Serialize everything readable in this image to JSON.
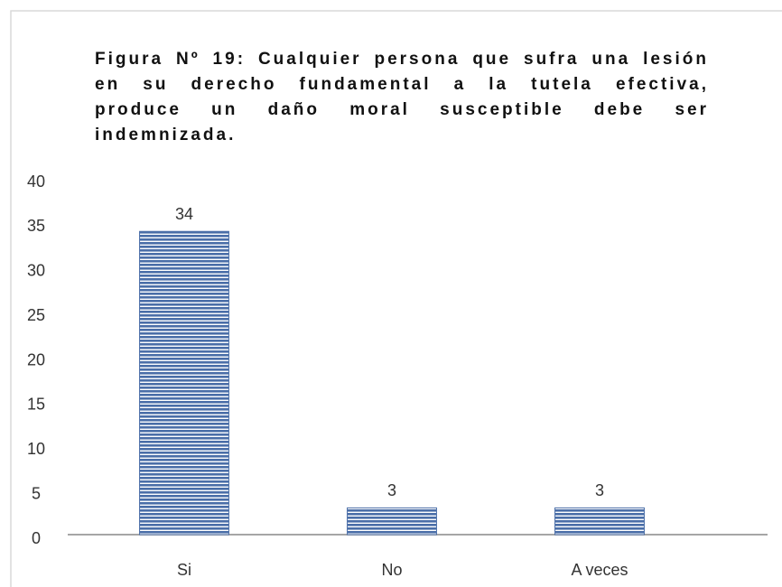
{
  "chart_data": {
    "type": "bar",
    "title": "Figura Nº 19: Cualquier persona que sufra una lesión en su derecho fundamental a la tutela efectiva, produce un daño moral susceptible debe ser indemnizada.",
    "categories": [
      "Si",
      "No",
      "A veces"
    ],
    "values": [
      34,
      3,
      3
    ],
    "color": "#4a6ea8",
    "ylim": [
      0,
      40
    ],
    "yticks": [
      0,
      5,
      10,
      15,
      20,
      25,
      30,
      35,
      40
    ],
    "grid": false
  }
}
